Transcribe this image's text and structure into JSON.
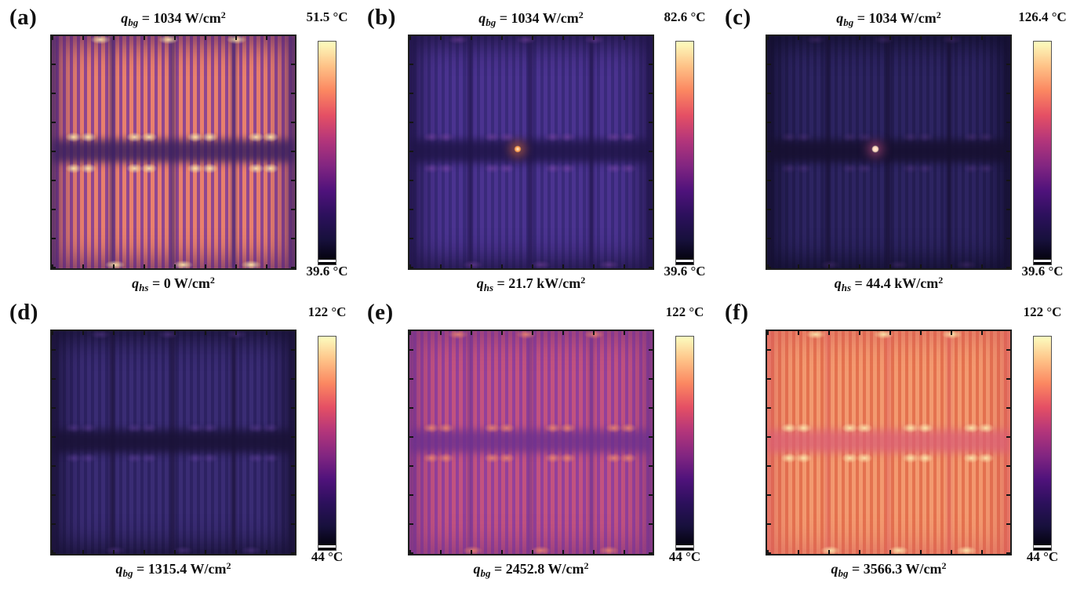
{
  "figure": {
    "background": "#ffffff",
    "colormap": "magma",
    "colorbar_gradient": [
      "#000004",
      "#17103c",
      "#2c105c",
      "#4f127b",
      "#812581",
      "#b5367a",
      "#e55064",
      "#fb8761",
      "#fec287",
      "#fcfdbf"
    ]
  },
  "chart_data": [
    {
      "panel": "a",
      "type": "heatmap",
      "colormap": "magma",
      "colorbar_max_c": 51.5,
      "colorbar_min_c": 39.6,
      "top_label": "q_bg = 1034 W/cm2",
      "bottom_label": "q_hs = 0 W/cm2",
      "content": "IR temperature map of serpentine background heaters; bright warm traces on cooler substrate, hot U-turn spots near the horizontal midline"
    },
    {
      "panel": "b",
      "type": "heatmap",
      "colormap": "magma",
      "colorbar_max_c": 82.6,
      "colorbar_min_c": 39.6,
      "top_label": "q_bg = 1034 W/cm2",
      "bottom_label": "q_hs = 21.7 kW/cm2",
      "content": "Mostly dark purple field with faint serpentine pattern and one small bright orange hotspot at the center"
    },
    {
      "panel": "c",
      "type": "heatmap",
      "colormap": "magma",
      "colorbar_max_c": 126.4,
      "colorbar_min_c": 39.6,
      "top_label": "q_bg = 1034 W/cm2",
      "bottom_label": "q_hs = 44.4 kW/cm2",
      "content": "Very dark navy field, barely visible traces, single intense white-pink hotspot at the center"
    },
    {
      "panel": "d",
      "type": "heatmap",
      "colormap": "magma",
      "colorbar_max_c": 122,
      "colorbar_min_c": 44,
      "top_label": null,
      "bottom_label": "q_bg = 1315.4 W/cm2",
      "content": "Dim indigo field with faint violet serpentine traces"
    },
    {
      "panel": "e",
      "type": "heatmap",
      "colormap": "magma",
      "colorbar_max_c": 122,
      "colorbar_min_c": 44,
      "top_label": null,
      "bottom_label": "q_bg = 2452.8 W/cm2",
      "content": "Magenta-pink serpentine traces on purple background, warm turn spots near midline"
    },
    {
      "panel": "f",
      "type": "heatmap",
      "colormap": "magma",
      "colorbar_max_c": 122,
      "colorbar_min_c": 44,
      "top_label": null,
      "bottom_label": "q_bg = 3566.3 W/cm2",
      "content": "Bright orange serpentine traces with pale yellow U-turn hotspots, hottest frame"
    }
  ],
  "panels": [
    {
      "id": "a",
      "letter": "(a)",
      "top_label": {
        "var": "q",
        "sub": "bg",
        "mid": " = 1034 W/cm",
        "sup": "2"
      },
      "bottom_label": {
        "var": "q",
        "sub": "hs",
        "mid": " = 0 W/cm",
        "sup": "2"
      },
      "temp_max": "51.5 °C",
      "temp_min": "39.6 °C",
      "colors": {
        "stripe": "#e8806d",
        "bg": "#8f4790",
        "band": "rgba(58,32,94,0.85)",
        "ggap": "rgba(72,40,108,0.9)",
        "turn": "rgba(252,226,166,0.95)",
        "edge": "rgba(88,38,108,0.8)"
      }
    },
    {
      "id": "b",
      "letter": "(b)",
      "top_label": {
        "var": "q",
        "sub": "bg",
        "mid": " = 1034 W/cm",
        "sup": "2"
      },
      "bottom_label": {
        "var": "q",
        "sub": "hs",
        "mid": " = 21.7 kW/cm",
        "sup": "2"
      },
      "temp_max": "82.6 °C",
      "temp_min": "39.6 °C",
      "colors": {
        "stripe": "#4b3390",
        "bg": "#3a2a7a",
        "band": "rgba(30,20,70,0.85)",
        "ggap": "rgba(34,22,76,0.9)",
        "turn": "rgba(160,85,190,0.35)",
        "edge": "rgba(28,18,62,0.9)",
        "hot": "1",
        "hotdot": "#ff9a4a",
        "hotglow": "rgba(240,120,60,0.55)"
      }
    },
    {
      "id": "c",
      "letter": "(c)",
      "top_label": {
        "var": "q",
        "sub": "bg",
        "mid": " = 1034 W/cm",
        "sup": "2"
      },
      "bottom_label": {
        "var": "q",
        "sub": "hs",
        "mid": " = 44.4 kW/cm",
        "sup": "2"
      },
      "temp_max": "126.4 °C",
      "temp_min": "39.6 °C",
      "colors": {
        "stripe": "#2d2462",
        "bg": "#241d52",
        "band": "rgba(22,16,48,0.9)",
        "ggap": "rgba(24,17,52,0.9)",
        "turn": "rgba(120,70,160,0.25)",
        "edge": "rgba(16,12,40,0.9)",
        "hot": "1",
        "hotdot": "#ffd2bc",
        "hotglow": "rgba(225,90,140,0.5)"
      }
    },
    {
      "id": "d",
      "letter": "(d)",
      "top_label": null,
      "bottom_label": {
        "var": "q",
        "sub": "bg",
        "mid": " = 1315.4 W/cm",
        "sup": "2"
      },
      "temp_max": "122 °C",
      "temp_min": "44 °C",
      "colors": {
        "stripe": "#3a2c74",
        "bg": "#2d2262",
        "band": "rgba(26,18,54,0.9)",
        "ggap": "rgba(30,20,60,0.9)",
        "turn": "rgba(130,80,190,0.3)",
        "edge": "rgba(20,14,46,0.9)"
      }
    },
    {
      "id": "e",
      "letter": "(e)",
      "top_label": null,
      "bottom_label": {
        "var": "q",
        "sub": "bg",
        "mid": " = 2452.8 W/cm",
        "sup": "2"
      },
      "temp_max": "122 °C",
      "temp_min": "44 °C",
      "colors": {
        "stripe": "#c2537f",
        "bg": "#93409a",
        "band": "rgba(108,48,140,0.8)",
        "ggap": "rgba(116,52,138,0.8)",
        "turn": "rgba(242,140,108,0.8)",
        "edge": "rgba(118,48,128,0.7)"
      }
    },
    {
      "id": "f",
      "letter": "(f)",
      "top_label": null,
      "bottom_label": {
        "var": "q",
        "sub": "bg",
        "mid": " = 3566.3 W/cm",
        "sup": "2"
      },
      "temp_max": "122 °C",
      "temp_min": "44 °C",
      "colors": {
        "stripe": "#f39a70",
        "bg": "#e4724f",
        "band": "rgba(218,95,118,0.75)",
        "ggap": "rgba(224,100,100,0.6)",
        "turn": "rgba(252,230,172,0.95)",
        "edge": "rgba(214,90,90,0.6)"
      }
    }
  ]
}
